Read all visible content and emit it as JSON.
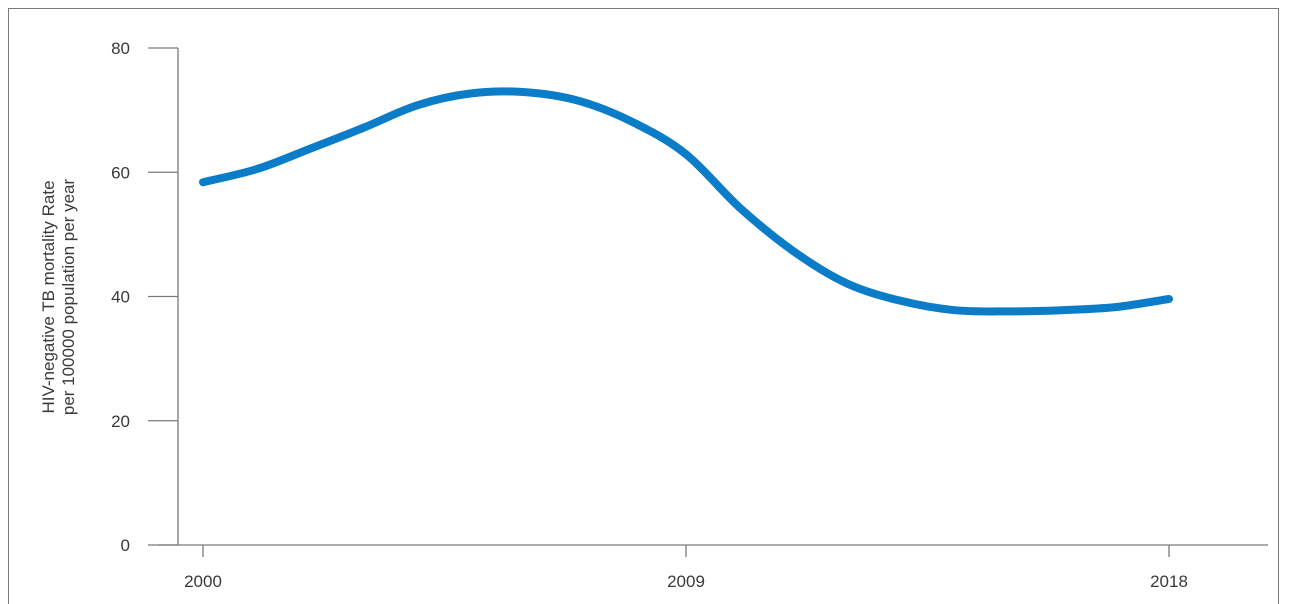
{
  "chart_data": {
    "type": "line",
    "title": "",
    "xlabel": "",
    "ylabel_lines": [
      "HIV-negative TB mortality Rate",
      "per 100000 population per year"
    ],
    "ylim": [
      0,
      80
    ],
    "y_ticks": [
      "0",
      "20",
      "40",
      "60",
      "80"
    ],
    "x_ticks": [
      "2000",
      "2009",
      "2018"
    ],
    "xlim": [
      2000,
      2018
    ],
    "grid": false,
    "legend": "none",
    "series": [
      {
        "color": "#0a7cc8",
        "x": [
          2000,
          2001,
          2002,
          2003,
          2004,
          2005,
          2006,
          2007,
          2008,
          2009,
          2010,
          2011,
          2012,
          2013,
          2014,
          2015,
          2016,
          2017,
          2018
        ],
        "y": [
          58.4,
          60.5,
          63.8,
          67.2,
          70.8,
          72.7,
          72.9,
          71.5,
          68.1,
          62.9,
          54.3,
          47.3,
          42.1,
          39.3,
          37.8,
          37.6,
          37.8,
          38.3,
          39.6
        ]
      }
    ]
  }
}
